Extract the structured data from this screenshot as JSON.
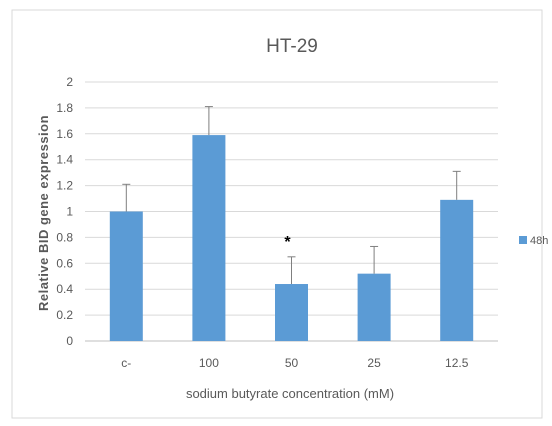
{
  "chart_data": {
    "type": "bar",
    "title": "HT-29",
    "xlabel": "sodium butyrate concentration (mM)",
    "ylabel": "Relative BID gene expression",
    "categories": [
      "c-",
      "100",
      "50",
      "25",
      "12.5"
    ],
    "series": [
      {
        "name": "48h",
        "values": [
          1.0,
          1.59,
          0.44,
          0.52,
          1.09
        ],
        "errors": [
          0.21,
          0.22,
          0.21,
          0.21,
          0.22
        ]
      }
    ],
    "ylim": [
      0,
      2
    ],
    "yticks": [
      "0",
      "0.2",
      "0.4",
      "0.6",
      "0.8",
      "1",
      "1.2",
      "1.4",
      "1.6",
      "1.8",
      "2"
    ],
    "ytick_values": [
      0,
      0.2,
      0.4,
      0.6,
      0.8,
      1.0,
      1.2,
      1.4,
      1.6,
      1.8,
      2.0
    ],
    "annotations": [
      {
        "text": "*",
        "category": "50"
      }
    ],
    "grid": true,
    "legend_position": "right",
    "colors": {
      "bar": "#5b9bd5",
      "grid": "#d9d9d9",
      "text": "#595959",
      "axis": "#bfbfbf"
    }
  }
}
